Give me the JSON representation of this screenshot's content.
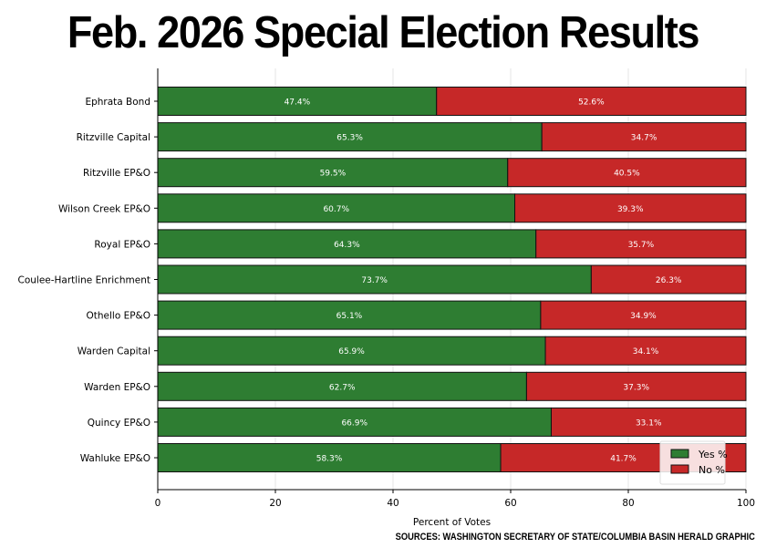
{
  "chart_data": {
    "type": "bar",
    "orientation": "horizontal",
    "stacked": true,
    "title": "Feb. 2026 Special Election Results",
    "xlabel": "Percent of Votes",
    "ylabel": "",
    "xlim": [
      0,
      100
    ],
    "xticks": [
      0,
      20,
      40,
      60,
      80,
      100
    ],
    "grid": true,
    "legend_position": "bottom-right",
    "categories": [
      "Ephrata Bond",
      "Ritzville Capital",
      "Ritzville EP&O",
      "Wilson Creek EP&O",
      "Royal EP&O",
      "Coulee-Hartline Enrichment",
      "Othello EP&O",
      "Warden Capital",
      "Warden EP&O",
      "Quincy EP&O",
      "Wahluke EP&O"
    ],
    "series": [
      {
        "name": "Yes %",
        "color": "#2e7d32",
        "values": [
          47.4,
          65.3,
          59.5,
          60.7,
          64.3,
          73.7,
          65.1,
          65.9,
          62.7,
          66.9,
          58.3
        ]
      },
      {
        "name": "No %",
        "color": "#c62828",
        "values": [
          52.6,
          34.7,
          40.5,
          39.3,
          35.7,
          26.3,
          34.9,
          34.1,
          37.3,
          33.1,
          41.7
        ]
      }
    ]
  },
  "sources": "SOURCES: WASHINGTON SECRETARY OF STATE/COLUMBIA BASIN HERALD GRAPHIC"
}
